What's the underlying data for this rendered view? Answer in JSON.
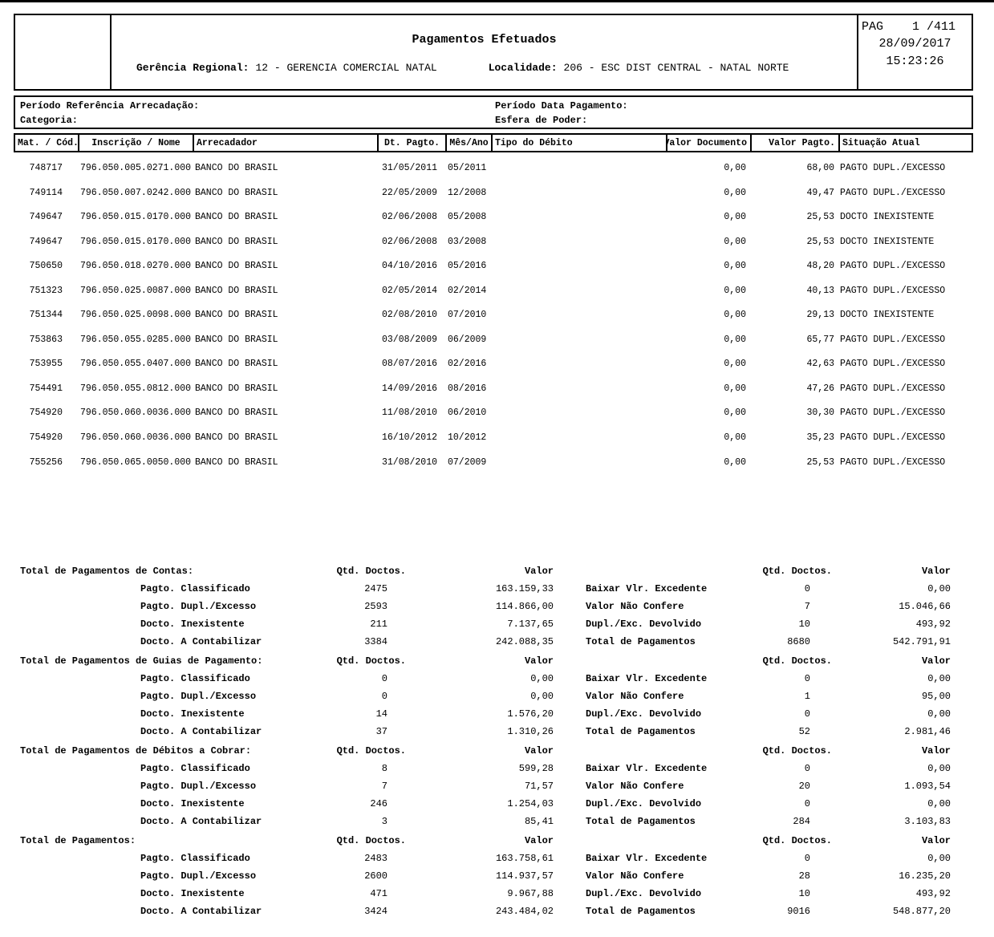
{
  "header": {
    "title": "Pagamentos Efetuados",
    "gerencia_label": "Gerência Regional:",
    "gerencia_value": "12 - GERENCIA COMERCIAL NATAL",
    "localidade_label": "Localidade:",
    "localidade_value": "206 - ESC DIST CENTRAL - NATAL NORTE",
    "page_line": "PAG    1 /411",
    "date": "28/09/2017",
    "time": "15:23:26"
  },
  "filters": {
    "periodo_referencia_label": "Período Referência Arrecadação:",
    "categoria_label": "Categoria:",
    "periodo_pagamento_label": "Período Data Pagamento:",
    "esfera_label": "Esfera de Poder:"
  },
  "table": {
    "columns": [
      "Mat. / Cód.",
      "Inscrição / Nome",
      "Arrecadador",
      "Dt. Pagto.",
      "Mês/Ano",
      "Tipo do Débito",
      "Valor Documento",
      "Valor Pagto.",
      "Situação Atual"
    ],
    "rows": [
      {
        "mat": "748717",
        "inscricao": "796.050.005.0271.000",
        "arrecadador": "BANCO DO BRASIL",
        "dt_pagto": "31/05/2011",
        "mes_ano": "05/2011",
        "tipo_debito": "",
        "valor_documento": "0,00",
        "valor_pagto": "68,00",
        "situacao": "PAGTO DUPL./EXCESSO"
      },
      {
        "mat": "749114",
        "inscricao": "796.050.007.0242.000",
        "arrecadador": "BANCO DO BRASIL",
        "dt_pagto": "22/05/2009",
        "mes_ano": "12/2008",
        "tipo_debito": "",
        "valor_documento": "0,00",
        "valor_pagto": "49,47",
        "situacao": "PAGTO DUPL./EXCESSO"
      },
      {
        "mat": "749647",
        "inscricao": "796.050.015.0170.000",
        "arrecadador": "BANCO DO BRASIL",
        "dt_pagto": "02/06/2008",
        "mes_ano": "05/2008",
        "tipo_debito": "",
        "valor_documento": "0,00",
        "valor_pagto": "25,53",
        "situacao": "DOCTO INEXISTENTE"
      },
      {
        "mat": "749647",
        "inscricao": "796.050.015.0170.000",
        "arrecadador": "BANCO DO BRASIL",
        "dt_pagto": "02/06/2008",
        "mes_ano": "03/2008",
        "tipo_debito": "",
        "valor_documento": "0,00",
        "valor_pagto": "25,53",
        "situacao": "DOCTO INEXISTENTE"
      },
      {
        "mat": "750650",
        "inscricao": "796.050.018.0270.000",
        "arrecadador": "BANCO DO BRASIL",
        "dt_pagto": "04/10/2016",
        "mes_ano": "05/2016",
        "tipo_debito": "",
        "valor_documento": "0,00",
        "valor_pagto": "48,20",
        "situacao": "PAGTO DUPL./EXCESSO"
      },
      {
        "mat": "751323",
        "inscricao": "796.050.025.0087.000",
        "arrecadador": "BANCO DO BRASIL",
        "dt_pagto": "02/05/2014",
        "mes_ano": "02/2014",
        "tipo_debito": "",
        "valor_documento": "0,00",
        "valor_pagto": "40,13",
        "situacao": "PAGTO DUPL./EXCESSO"
      },
      {
        "mat": "751344",
        "inscricao": "796.050.025.0098.000",
        "arrecadador": "BANCO DO BRASIL",
        "dt_pagto": "02/08/2010",
        "mes_ano": "07/2010",
        "tipo_debito": "",
        "valor_documento": "0,00",
        "valor_pagto": "29,13",
        "situacao": "DOCTO INEXISTENTE"
      },
      {
        "mat": "753863",
        "inscricao": "796.050.055.0285.000",
        "arrecadador": "BANCO DO BRASIL",
        "dt_pagto": "03/08/2009",
        "mes_ano": "06/2009",
        "tipo_debito": "",
        "valor_documento": "0,00",
        "valor_pagto": "65,77",
        "situacao": "PAGTO DUPL./EXCESSO"
      },
      {
        "mat": "753955",
        "inscricao": "796.050.055.0407.000",
        "arrecadador": "BANCO DO BRASIL",
        "dt_pagto": "08/07/2016",
        "mes_ano": "02/2016",
        "tipo_debito": "",
        "valor_documento": "0,00",
        "valor_pagto": "42,63",
        "situacao": "PAGTO DUPL./EXCESSO"
      },
      {
        "mat": "754491",
        "inscricao": "796.050.055.0812.000",
        "arrecadador": "BANCO DO BRASIL",
        "dt_pagto": "14/09/2016",
        "mes_ano": "08/2016",
        "tipo_debito": "",
        "valor_documento": "0,00",
        "valor_pagto": "47,26",
        "situacao": "PAGTO DUPL./EXCESSO"
      },
      {
        "mat": "754920",
        "inscricao": "796.050.060.0036.000",
        "arrecadador": "BANCO DO BRASIL",
        "dt_pagto": "11/08/2010",
        "mes_ano": "06/2010",
        "tipo_debito": "",
        "valor_documento": "0,00",
        "valor_pagto": "30,30",
        "situacao": "PAGTO DUPL./EXCESSO"
      },
      {
        "mat": "754920",
        "inscricao": "796.050.060.0036.000",
        "arrecadador": "BANCO DO BRASIL",
        "dt_pagto": "16/10/2012",
        "mes_ano": "10/2012",
        "tipo_debito": "",
        "valor_documento": "0,00",
        "valor_pagto": "35,23",
        "situacao": "PAGTO DUPL./EXCESSO"
      },
      {
        "mat": "755256",
        "inscricao": "796.050.065.0050.000",
        "arrecadador": "BANCO DO BRASIL",
        "dt_pagto": "31/08/2010",
        "mes_ano": "07/2009",
        "tipo_debito": "",
        "valor_documento": "0,00",
        "valor_pagto": "25,53",
        "situacao": "PAGTO DUPL./EXCESSO"
      }
    ]
  },
  "summary": {
    "qtd_header": "Qtd. Doctos.",
    "valor_header": "Valor",
    "blocks": [
      {
        "title": "Total de Pagamentos de Contas:",
        "rows": [
          {
            "left_label": "Pagto. Classificado",
            "left_qty": "2475",
            "left_value": "163.159,33",
            "right_label": "Baixar Vlr. Excedente",
            "right_qty": "0",
            "right_value": "0,00"
          },
          {
            "left_label": "Pagto. Dupl./Excesso",
            "left_qty": "2593",
            "left_value": "114.866,00",
            "right_label": "Valor Não Confere",
            "right_qty": "7",
            "right_value": "15.046,66"
          },
          {
            "left_label": "Docto. Inexistente",
            "left_qty": "211",
            "left_value": "7.137,65",
            "right_label": "Dupl./Exc. Devolvido",
            "right_qty": "10",
            "right_value": "493,92"
          },
          {
            "left_label": "Docto. A Contabilizar",
            "left_qty": "3384",
            "left_value": "242.088,35",
            "right_label": "Total de Pagamentos",
            "right_qty": "8680",
            "right_value": "542.791,91"
          }
        ]
      },
      {
        "title": "Total de Pagamentos de Guias de Pagamento:",
        "rows": [
          {
            "left_label": "Pagto. Classificado",
            "left_qty": "0",
            "left_value": "0,00",
            "right_label": "Baixar Vlr. Excedente",
            "right_qty": "0",
            "right_value": "0,00"
          },
          {
            "left_label": "Pagto. Dupl./Excesso",
            "left_qty": "0",
            "left_value": "0,00",
            "right_label": "Valor Não Confere",
            "right_qty": "1",
            "right_value": "95,00"
          },
          {
            "left_label": "Docto. Inexistente",
            "left_qty": "14",
            "left_value": "1.576,20",
            "right_label": "Dupl./Exc. Devolvido",
            "right_qty": "0",
            "right_value": "0,00"
          },
          {
            "left_label": "Docto. A Contabilizar",
            "left_qty": "37",
            "left_value": "1.310,26",
            "right_label": "Total de Pagamentos",
            "right_qty": "52",
            "right_value": "2.981,46"
          }
        ]
      },
      {
        "title": "Total de Pagamentos de Débitos a Cobrar:",
        "rows": [
          {
            "left_label": "Pagto. Classificado",
            "left_qty": "8",
            "left_value": "599,28",
            "right_label": "Baixar Vlr. Excedente",
            "right_qty": "0",
            "right_value": "0,00"
          },
          {
            "left_label": "Pagto. Dupl./Excesso",
            "left_qty": "7",
            "left_value": "71,57",
            "right_label": "Valor Não Confere",
            "right_qty": "20",
            "right_value": "1.093,54"
          },
          {
            "left_label": "Docto. Inexistente",
            "left_qty": "246",
            "left_value": "1.254,03",
            "right_label": "Dupl./Exc. Devolvido",
            "right_qty": "0",
            "right_value": "0,00"
          },
          {
            "left_label": "Docto. A Contabilizar",
            "left_qty": "3",
            "left_value": "85,41",
            "right_label": "Total de Pagamentos",
            "right_qty": "284",
            "right_value": "3.103,83"
          }
        ]
      },
      {
        "title": "Total de Pagamentos:",
        "rows": [
          {
            "left_label": "Pagto. Classificado",
            "left_qty": "2483",
            "left_value": "163.758,61",
            "right_label": "Baixar Vlr. Excedente",
            "right_qty": "0",
            "right_value": "0,00"
          },
          {
            "left_label": "Pagto. Dupl./Excesso",
            "left_qty": "2600",
            "left_value": "114.937,57",
            "right_label": "Valor Não Confere",
            "right_qty": "28",
            "right_value": "16.235,20"
          },
          {
            "left_label": "Docto. Inexistente",
            "left_qty": "471",
            "left_value": "9.967,88",
            "right_label": "Dupl./Exc. Devolvido",
            "right_qty": "10",
            "right_value": "493,92"
          },
          {
            "left_label": "Docto. A Contabilizar",
            "left_qty": "3424",
            "left_value": "243.484,02",
            "right_label": "Total de Pagamentos",
            "right_qty": "9016",
            "right_value": "548.877,20"
          }
        ]
      }
    ]
  }
}
